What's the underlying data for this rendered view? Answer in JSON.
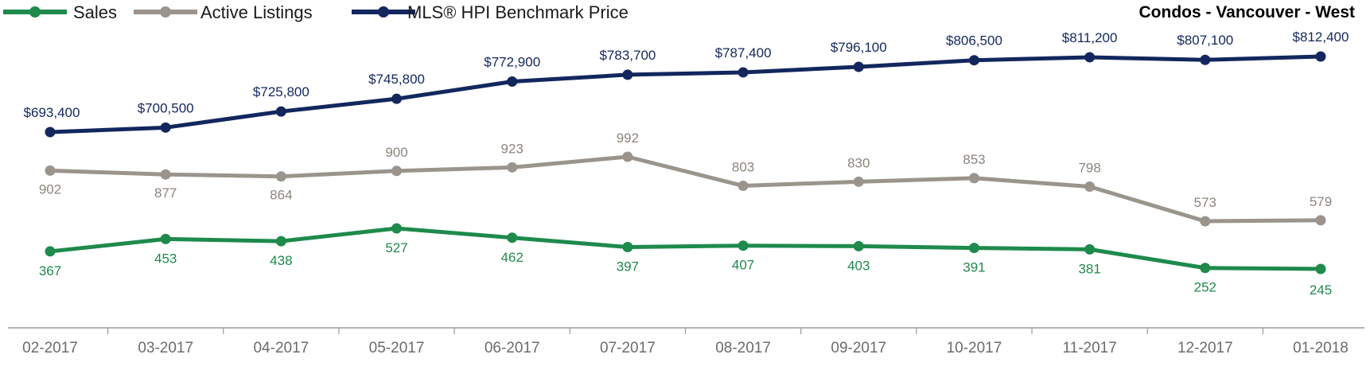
{
  "chart_data": {
    "type": "line",
    "title": "Condos - Vancouver - West",
    "categories": [
      "02-2017",
      "03-2017",
      "04-2017",
      "05-2017",
      "06-2017",
      "07-2017",
      "08-2017",
      "09-2017",
      "10-2017",
      "11-2017",
      "12-2017",
      "01-2018"
    ],
    "series": [
      {
        "name": "Sales",
        "color": "#1e8a4c",
        "values": [
          367,
          453,
          438,
          527,
          462,
          397,
          407,
          403,
          391,
          381,
          252,
          245
        ],
        "labels": [
          "367",
          "453",
          "438",
          "527",
          "462",
          "397",
          "407",
          "403",
          "391",
          "381",
          "252",
          "245"
        ]
      },
      {
        "name": "Active Listings",
        "color": "#9b948c",
        "values": [
          902,
          877,
          864,
          900,
          923,
          992,
          803,
          830,
          853,
          798,
          573,
          579
        ],
        "labels": [
          "902",
          "877",
          "864",
          "900",
          "923",
          "992",
          "803",
          "830",
          "853",
          "798",
          "573",
          "579"
        ]
      },
      {
        "name": "MLS® HPI Benchmark Price",
        "color": "#13275e",
        "values": [
          693400,
          700500,
          725800,
          745800,
          772900,
          783700,
          787400,
          796100,
          806500,
          811200,
          807100,
          812400
        ],
        "labels": [
          "$693,400",
          "$700,500",
          "$725,800",
          "$745,800",
          "$772,900",
          "$783,700",
          "$787,400",
          "$796,100",
          "$806,500",
          "$811,200",
          "$807,100",
          "$812,400"
        ]
      }
    ],
    "legend_position": "top-left",
    "grid": false
  }
}
